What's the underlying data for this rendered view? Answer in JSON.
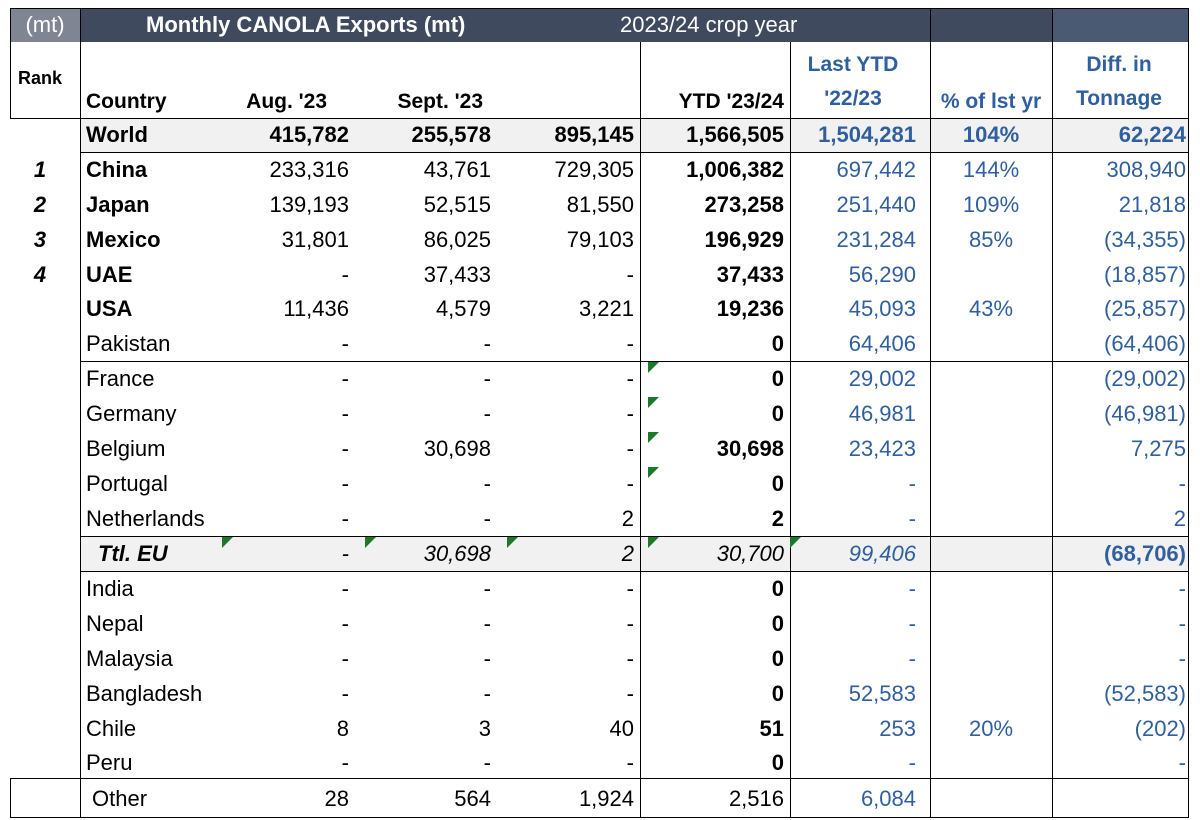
{
  "title_bar": {
    "unit": "(mt)",
    "title": "Monthly CANOLA Exports  (mt)",
    "crop_year": "2023/24 crop year"
  },
  "headers": {
    "rank": "Rank",
    "country": "Country",
    "aug": "Aug. '23",
    "sept": "Sept. '23",
    "ytd": "YTD '23/24",
    "last_ytd_line1": "Last YTD",
    "last_ytd_line2": "'22/23",
    "pct": "% of lst yr",
    "diff_line1": "Diff. in",
    "diff_line2": "Tonnage"
  },
  "rows": [
    {
      "rank": "",
      "country": "World",
      "aug": "415,782",
      "sept": "255,578",
      "oct": "895,145",
      "ytd": "1,566,505",
      "last": "1,504,281",
      "pct": "104%",
      "diff": "62,224"
    },
    {
      "rank": "1",
      "country": "China",
      "aug": "233,316",
      "sept": "43,761",
      "oct": "729,305",
      "ytd": "1,006,382",
      "last": "697,442",
      "pct": "144%",
      "diff": "308,940"
    },
    {
      "rank": "2",
      "country": "Japan",
      "aug": "139,193",
      "sept": "52,515",
      "oct": "81,550",
      "ytd": "273,258",
      "last": "251,440",
      "pct": "109%",
      "diff": "21,818"
    },
    {
      "rank": "3",
      "country": "Mexico",
      "aug": "31,801",
      "sept": "86,025",
      "oct": "79,103",
      "ytd": "196,929",
      "last": "231,284",
      "pct": "85%",
      "diff": "(34,355)"
    },
    {
      "rank": "4",
      "country": "UAE",
      "aug": "-",
      "sept": "37,433",
      "oct": "-",
      "ytd": "37,433",
      "last": "56,290",
      "pct": "",
      "diff": "(18,857)"
    },
    {
      "rank": "",
      "country": "USA",
      "aug": "11,436",
      "sept": "4,579",
      "oct": "3,221",
      "ytd": "19,236",
      "last": "45,093",
      "pct": "43%",
      "diff": "(25,857)"
    },
    {
      "rank": "",
      "country": "Pakistan",
      "aug": "-",
      "sept": "-",
      "oct": "-",
      "ytd": "0",
      "last": "64,406",
      "pct": "",
      "diff": "(64,406)"
    },
    {
      "rank": "",
      "country": "France",
      "aug": "-",
      "sept": "-",
      "oct": "-",
      "ytd": "0",
      "last": "29,002",
      "pct": "",
      "diff": "(29,002)"
    },
    {
      "rank": "",
      "country": "Germany",
      "aug": "-",
      "sept": "-",
      "oct": "-",
      "ytd": "0",
      "last": "46,981",
      "pct": "",
      "diff": "(46,981)"
    },
    {
      "rank": "",
      "country": "Belgium",
      "aug": "-",
      "sept": "30,698",
      "oct": "-",
      "ytd": "30,698",
      "last": "23,423",
      "pct": "",
      "diff": "7,275"
    },
    {
      "rank": "",
      "country": "Portugal",
      "aug": "-",
      "sept": "-",
      "oct": "-",
      "ytd": "0",
      "last": "-",
      "pct": "",
      "diff": "-"
    },
    {
      "rank": "",
      "country": "Netherlands",
      "aug": "-",
      "sept": "-",
      "oct": "2",
      "ytd": "2",
      "last": "-",
      "pct": "",
      "diff": "2"
    },
    {
      "rank": "",
      "country": "Ttl. EU",
      "aug": "-",
      "sept": "30,698",
      "oct": "2",
      "ytd": "30,700",
      "last": "99,406",
      "pct": "",
      "diff": "(68,706)"
    },
    {
      "rank": "",
      "country": "India",
      "aug": "-",
      "sept": "-",
      "oct": "-",
      "ytd": "0",
      "last": "-",
      "pct": "",
      "diff": "-"
    },
    {
      "rank": "",
      "country": "Nepal",
      "aug": "-",
      "sept": "-",
      "oct": "-",
      "ytd": "0",
      "last": "-",
      "pct": "",
      "diff": "-"
    },
    {
      "rank": "",
      "country": "Malaysia",
      "aug": "-",
      "sept": "-",
      "oct": "-",
      "ytd": "0",
      "last": "-",
      "pct": "",
      "diff": "-"
    },
    {
      "rank": "",
      "country": "Bangladesh",
      "aug": "-",
      "sept": "-",
      "oct": "-",
      "ytd": "0",
      "last": "52,583",
      "pct": "",
      "diff": "(52,583)"
    },
    {
      "rank": "",
      "country": "Chile",
      "aug": "8",
      "sept": "3",
      "oct": "40",
      "ytd": "51",
      "last": "253",
      "pct": "20%",
      "diff": "(202)"
    },
    {
      "rank": "",
      "country": "Peru",
      "aug": "-",
      "sept": "-",
      "oct": "-",
      "ytd": "0",
      "last": "-",
      "pct": "",
      "diff": "-"
    },
    {
      "rank": "",
      "country": "Other",
      "aug": "28",
      "sept": "564",
      "oct": "1,924",
      "ytd": "2,516",
      "last": "6,084",
      "pct": "",
      "diff": ""
    }
  ],
  "colors": {
    "title_bg": "#3f4a5e",
    "unit_bg": "#7f8593",
    "blue_text": "#2f5f9e",
    "comment_marker": "#1a7a2a"
  }
}
